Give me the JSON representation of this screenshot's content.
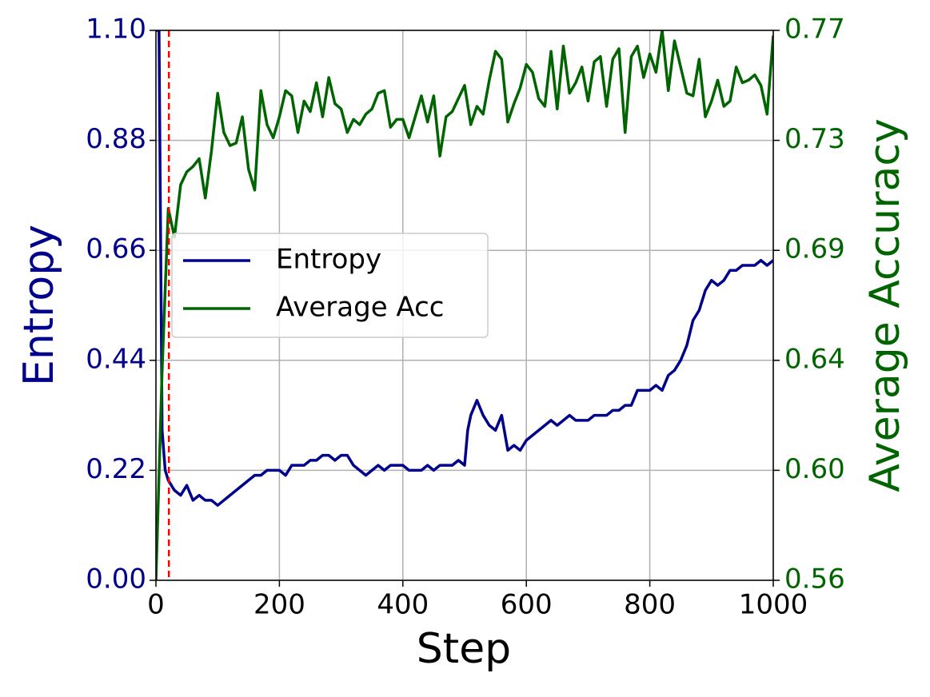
{
  "chart_data": {
    "type": "line",
    "xlabel": "Step",
    "ylabel": "Entropy",
    "y2label": "Average Accuracy",
    "xlim": [
      0,
      1000
    ],
    "xticks": [
      0,
      200,
      400,
      600,
      800,
      1000
    ],
    "ylim": [
      0,
      1.1
    ],
    "yticks": [
      {
        "value": 0,
        "label": "0.00"
      },
      0.22,
      0.44,
      0.66,
      0.88,
      {
        "value": 1.1,
        "label": "1.10"
      }
    ],
    "y2lim": [
      0.56,
      0.77
    ],
    "y2ticks": [
      0.56,
      {
        "value": 0.602,
        "label": "0.60"
      },
      {
        "value": 0.644,
        "label": "0.64"
      },
      {
        "value": 0.686,
        "label": "0.69"
      },
      {
        "value": 0.728,
        "label": "0.73"
      },
      0.77
    ],
    "ylabel_color": "#00008b",
    "y2label_color": "#006400",
    "grid": true,
    "legend": "center left",
    "vline": {
      "x": 21,
      "color": "#ff0000"
    },
    "series": [
      {
        "name": "Entropy",
        "color": "#00008b",
        "axis": "y",
        "x": [
          0,
          5,
          10,
          15,
          20,
          30,
          40,
          50,
          60,
          70,
          80,
          90,
          100,
          110,
          120,
          130,
          140,
          150,
          160,
          170,
          180,
          190,
          200,
          210,
          220,
          230,
          240,
          250,
          260,
          270,
          280,
          290,
          300,
          310,
          320,
          330,
          340,
          350,
          360,
          370,
          380,
          390,
          400,
          410,
          420,
          430,
          440,
          450,
          460,
          470,
          480,
          490,
          500,
          505,
          510,
          520,
          530,
          540,
          550,
          560,
          570,
          580,
          590,
          600,
          610,
          620,
          630,
          640,
          650,
          660,
          670,
          680,
          690,
          700,
          710,
          720,
          730,
          740,
          750,
          760,
          770,
          780,
          790,
          800,
          810,
          820,
          830,
          840,
          850,
          860,
          870,
          880,
          890,
          900,
          910,
          920,
          930,
          940,
          950,
          960,
          970,
          980,
          990,
          1000
        ],
        "values": [
          1.1,
          1.1,
          0.3,
          0.22,
          0.2,
          0.18,
          0.17,
          0.19,
          0.16,
          0.17,
          0.16,
          0.16,
          0.15,
          0.16,
          0.17,
          0.18,
          0.19,
          0.2,
          0.21,
          0.21,
          0.22,
          0.22,
          0.22,
          0.21,
          0.23,
          0.23,
          0.23,
          0.24,
          0.24,
          0.25,
          0.25,
          0.24,
          0.25,
          0.25,
          0.23,
          0.22,
          0.21,
          0.22,
          0.23,
          0.22,
          0.23,
          0.23,
          0.23,
          0.22,
          0.22,
          0.22,
          0.23,
          0.22,
          0.23,
          0.23,
          0.23,
          0.24,
          0.23,
          0.3,
          0.33,
          0.36,
          0.33,
          0.31,
          0.3,
          0.33,
          0.26,
          0.27,
          0.26,
          0.28,
          0.29,
          0.3,
          0.31,
          0.32,
          0.31,
          0.32,
          0.33,
          0.32,
          0.32,
          0.32,
          0.33,
          0.33,
          0.33,
          0.34,
          0.34,
          0.35,
          0.35,
          0.38,
          0.38,
          0.38,
          0.39,
          0.38,
          0.41,
          0.42,
          0.44,
          0.47,
          0.52,
          0.54,
          0.58,
          0.6,
          0.59,
          0.6,
          0.62,
          0.62,
          0.63,
          0.63,
          0.63,
          0.64,
          0.63,
          0.64
        ]
      },
      {
        "name": "Average Acc",
        "color": "#006400",
        "axis": "y2",
        "x": [
          0,
          10,
          20,
          30,
          40,
          50,
          60,
          70,
          80,
          90,
          100,
          110,
          120,
          130,
          140,
          150,
          160,
          170,
          180,
          190,
          200,
          210,
          220,
          230,
          240,
          250,
          260,
          270,
          280,
          290,
          300,
          310,
          320,
          330,
          340,
          350,
          360,
          370,
          380,
          390,
          400,
          410,
          420,
          430,
          440,
          450,
          460,
          470,
          480,
          490,
          500,
          510,
          520,
          530,
          540,
          550,
          560,
          570,
          580,
          590,
          600,
          610,
          620,
          630,
          640,
          650,
          660,
          670,
          680,
          690,
          700,
          710,
          720,
          730,
          740,
          750,
          760,
          770,
          780,
          790,
          800,
          810,
          820,
          830,
          840,
          850,
          860,
          870,
          880,
          890,
          900,
          910,
          920,
          930,
          940,
          950,
          960,
          970,
          980,
          990,
          1000
        ],
        "values": [
          0.56,
          0.64,
          0.702,
          0.691,
          0.711,
          0.716,
          0.718,
          0.721,
          0.706,
          0.724,
          0.746,
          0.731,
          0.726,
          0.727,
          0.737,
          0.717,
          0.709,
          0.747,
          0.734,
          0.729,
          0.737,
          0.747,
          0.745,
          0.731,
          0.743,
          0.739,
          0.75,
          0.737,
          0.752,
          0.742,
          0.74,
          0.731,
          0.736,
          0.734,
          0.738,
          0.74,
          0.746,
          0.747,
          0.733,
          0.736,
          0.736,
          0.729,
          0.737,
          0.745,
          0.735,
          0.745,
          0.722,
          0.737,
          0.739,
          0.744,
          0.749,
          0.734,
          0.741,
          0.738,
          0.751,
          0.762,
          0.759,
          0.735,
          0.742,
          0.748,
          0.757,
          0.754,
          0.744,
          0.741,
          0.762,
          0.74,
          0.764,
          0.746,
          0.75,
          0.756,
          0.743,
          0.758,
          0.76,
          0.741,
          0.759,
          0.763,
          0.731,
          0.76,
          0.764,
          0.752,
          0.761,
          0.754,
          0.77,
          0.747,
          0.766,
          0.756,
          0.746,
          0.745,
          0.759,
          0.737,
          0.743,
          0.751,
          0.741,
          0.743,
          0.756,
          0.75,
          0.751,
          0.753,
          0.749,
          0.738,
          0.768
        ]
      }
    ]
  }
}
